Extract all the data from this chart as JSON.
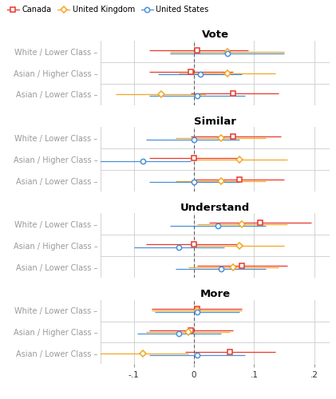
{
  "sections": [
    "Vote",
    "Similar",
    "Understand",
    "More"
  ],
  "row_labels": [
    "White / Lower Class",
    "Asian / Higher Class",
    "Asian / Lower Class"
  ],
  "countries": [
    "Canada",
    "United Kingdom",
    "United States"
  ],
  "colors": {
    "Canada": "#E8392A",
    "United Kingdom": "#F5A623",
    "United States": "#4A90D9"
  },
  "markers": {
    "Canada": "s",
    "United Kingdom": "D",
    "United States": "o"
  },
  "data": {
    "Vote": {
      "White / Lower Class": {
        "Canada": [
          0.005,
          -0.075,
          0.09
        ],
        "United Kingdom": [
          0.055,
          -0.04,
          0.15
        ],
        "United States": [
          0.055,
          -0.04,
          0.15
        ]
      },
      "Asian / Higher Class": {
        "Canada": [
          -0.005,
          -0.075,
          0.065
        ],
        "United Kingdom": [
          0.055,
          -0.025,
          0.135
        ],
        "United States": [
          0.01,
          -0.06,
          0.08
        ]
      },
      "Asian / Lower Class": {
        "Canada": [
          0.065,
          -0.005,
          0.14
        ],
        "United Kingdom": [
          -0.055,
          -0.13,
          0.02
        ],
        "United States": [
          0.005,
          -0.075,
          0.085
        ]
      }
    },
    "Similar": {
      "White / Lower Class": {
        "Canada": [
          0.065,
          -0.005,
          0.145
        ],
        "United Kingdom": [
          0.045,
          -0.03,
          0.12
        ],
        "United States": [
          0.0,
          -0.08,
          0.075
        ]
      },
      "Asian / Higher Class": {
        "Canada": [
          0.0,
          -0.075,
          0.075
        ],
        "United Kingdom": [
          0.075,
          -0.005,
          0.155
        ],
        "United States": [
          -0.085,
          -0.165,
          -0.005
        ]
      },
      "Asian / Lower Class": {
        "Canada": [
          0.075,
          0.0,
          0.15
        ],
        "United Kingdom": [
          0.045,
          -0.03,
          0.12
        ],
        "United States": [
          0.0,
          -0.075,
          0.075
        ]
      }
    },
    "Understand": {
      "White / Lower Class": {
        "Canada": [
          0.11,
          0.025,
          0.195
        ],
        "United Kingdom": [
          0.08,
          0.005,
          0.155
        ],
        "United States": [
          0.04,
          -0.04,
          0.12
        ]
      },
      "Asian / Higher Class": {
        "Canada": [
          0.0,
          -0.08,
          0.08
        ],
        "United Kingdom": [
          0.075,
          0.0,
          0.15
        ],
        "United States": [
          -0.025,
          -0.1,
          0.05
        ]
      },
      "Asian / Lower Class": {
        "Canada": [
          0.08,
          0.005,
          0.155
        ],
        "United Kingdom": [
          0.065,
          -0.01,
          0.14
        ],
        "United States": [
          0.045,
          -0.03,
          0.12
        ]
      }
    },
    "More": {
      "White / Lower Class": {
        "Canada": [
          0.005,
          -0.07,
          0.08
        ],
        "United Kingdom": [
          0.005,
          -0.07,
          0.08
        ],
        "United States": [
          0.005,
          -0.065,
          0.075
        ]
      },
      "Asian / Higher Class": {
        "Canada": [
          -0.005,
          -0.075,
          0.065
        ],
        "United Kingdom": [
          -0.01,
          -0.08,
          0.06
        ],
        "United States": [
          -0.025,
          -0.095,
          0.045
        ]
      },
      "Asian / Lower Class": {
        "Canada": [
          0.06,
          -0.015,
          0.135
        ],
        "United Kingdom": [
          -0.085,
          -0.16,
          -0.01
        ],
        "United States": [
          0.005,
          -0.075,
          0.085
        ]
      }
    }
  },
  "xlim": [
    -0.155,
    0.225
  ],
  "xticks": [
    -0.1,
    0.0,
    0.1,
    0.2
  ],
  "xticklabels": [
    "-.1",
    "0",
    ".1",
    ".2"
  ],
  "background_color": "#FFFFFF",
  "grid_color": "#CCCCCC",
  "vline_x": 0.0,
  "country_offsets": {
    "Canada": 0.07,
    "United Kingdom": 0.0,
    "United States": -0.07
  }
}
